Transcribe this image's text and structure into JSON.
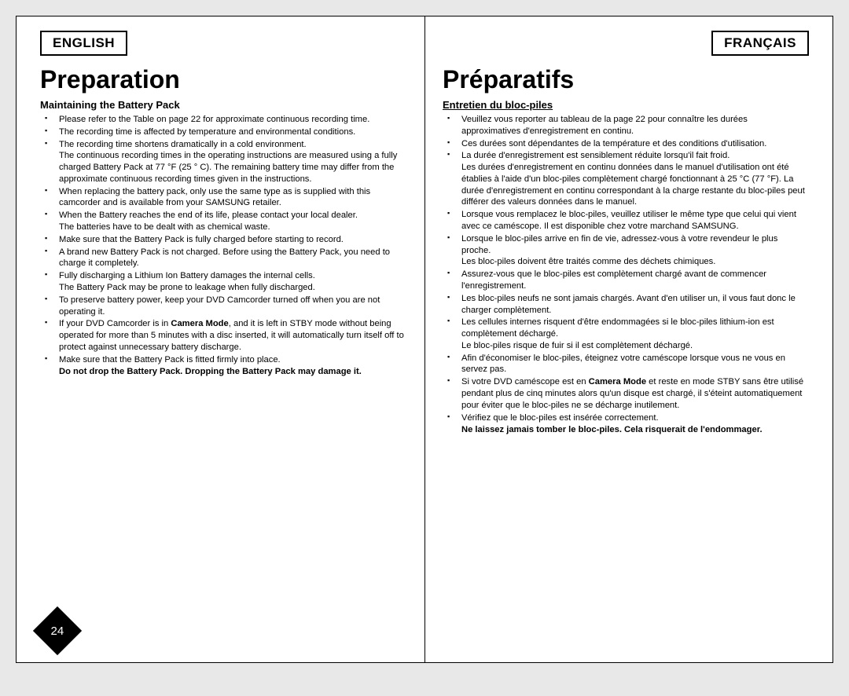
{
  "page_number": "24",
  "left": {
    "lang_label": "ENGLISH",
    "title": "Preparation",
    "subtitle": "Maintaining the Battery Pack",
    "bullets": [
      {
        "text": "Please refer to the Table on page 22 for approximate continuous recording time."
      },
      {
        "text": "The recording time is affected by temperature and environmental conditions."
      },
      {
        "text": "The recording time shortens dramatically in a cold environment.",
        "note": "The continuous recording times in the operating instructions are measured using a fully charged Battery Pack at 77 °F (25 ° C). The remaining battery time may differ from the approximate continuous recording times given in the instructions."
      },
      {
        "text": "When replacing the battery pack, only use the same type as is supplied with this camcorder and is available from your SAMSUNG retailer."
      },
      {
        "text": "When the Battery reaches the end of its life, please contact your local dealer.",
        "note": "The batteries have to be dealt with as chemical waste."
      },
      {
        "text": "Make sure that the Battery Pack is fully charged before starting to record."
      },
      {
        "text": "A brand new Battery Pack is not charged. Before using the Battery Pack, you need to charge it completely."
      },
      {
        "text": "Fully discharging a Lithium Ion Battery damages the internal cells.",
        "note": "The Battery Pack may be prone to leakage when fully discharged."
      },
      {
        "text": "To preserve battery power, keep your DVD Camcorder turned off when you are not operating it."
      },
      {
        "text_html": "If your DVD Camcorder is in <b>Camera Mode</b>, and it is left in STBY mode without being operated for more than 5 minutes  with a disc inserted, it will automatically turn itself off to protect against unnecessary battery discharge."
      },
      {
        "text": "Make sure that the Battery Pack is fitted firmly into place."
      }
    ],
    "bold_note": "Do not drop the Battery Pack. Dropping the Battery Pack may damage it."
  },
  "right": {
    "lang_label": "FRANÇAIS",
    "title": "Préparatifs",
    "subtitle": "Entretien du bloc-piles",
    "bullets": [
      {
        "text": "Veuillez vous reporter au tableau de la page 22 pour connaître les durées approximatives d'enregistrement en continu."
      },
      {
        "text": "Ces durées sont dépendantes de la température et des conditions d'utilisation."
      },
      {
        "text": "La durée d'enregistrement est sensiblement réduite lorsqu'il fait froid.",
        "note": "Les durées d'enregistrement en continu données dans le manuel d'utilisation ont été établies à l'aide d'un bloc-piles complètement chargé fonctionnant à 25 °C (77 °F).\nLa durée d'enregistrement en continu correspondant à la charge restante du bloc-piles peut différer des valeurs données dans le manuel."
      },
      {
        "text": "Lorsque vous remplacez le bloc-piles, veuillez utiliser le même type que celui qui vient avec ce caméscope. Il est disponible chez votre marchand SAMSUNG."
      },
      {
        "text": "Lorsque le bloc-piles arrive en fin de vie, adressez-vous à votre revendeur le plus proche.",
        "note": "Les bloc-piles doivent être traités comme des déchets chimiques."
      },
      {
        "text": "Assurez-vous que le bloc-piles est complètement chargé avant de commencer l'enregistrement."
      },
      {
        "text": "Les bloc-piles neufs ne sont jamais chargés. Avant d'en utiliser un, il vous faut donc le charger complètement."
      },
      {
        "text": "Les cellules internes risquent d'être endommagées si le bloc-piles lithium-ion est complètement déchargé.",
        "note": "Le bloc-piles risque de fuir si il est complètement déchargé."
      },
      {
        "text": "Afin d'économiser le bloc-piles, éteignez votre caméscope lorsque vous ne vous en servez pas."
      },
      {
        "text_html": "Si votre DVD caméscope est en <b>Camera Mode</b> et reste en mode STBY sans être utilisé pendant plus de cinq minutes alors qu'un disque est chargé, il s'éteint automatiquement pour éviter que le bloc-piles ne se décharge inutilement."
      },
      {
        "text": "Vérifiez que le bloc-piles est insérée correctement."
      }
    ],
    "bold_note": "Ne laissez jamais tomber le bloc-piles. Cela risquerait de l'endommager."
  }
}
